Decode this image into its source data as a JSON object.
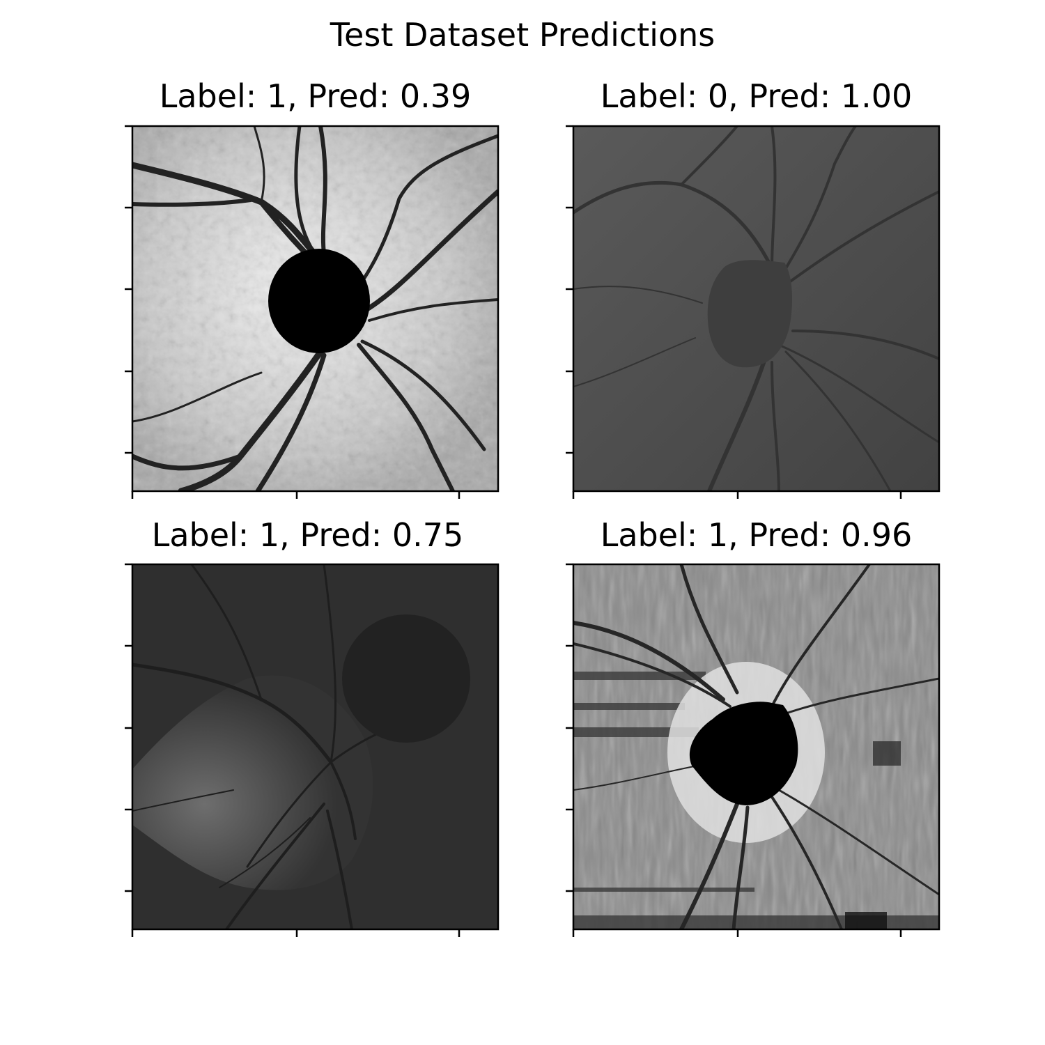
{
  "figure": {
    "title": "Test Dataset Predictions"
  },
  "panels": [
    {
      "title": "Label: 1, Pred: 0.39",
      "label": 1,
      "pred": 0.39,
      "image": "fundus-optic-disc-high-contrast"
    },
    {
      "title": "Label: 0, Pred: 1.00",
      "label": 0,
      "pred": 1.0,
      "image": "fundus-optic-disc-dark-gray"
    },
    {
      "title": "Label: 1, Pred: 0.75",
      "label": 1,
      "pred": 0.75,
      "image": "fundus-optic-disc-dark-with-mask"
    },
    {
      "title": "Label: 1, Pred: 0.96",
      "label": 1,
      "pred": 0.96,
      "image": "fundus-optic-disc-noisy-bright-rim"
    }
  ]
}
